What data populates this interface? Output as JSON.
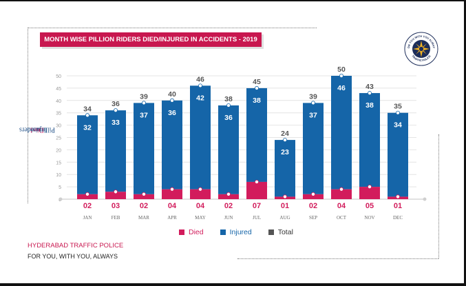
{
  "title": "MONTH WISE PILLION RIDERS DIED/INJURED IN ACCIDENTS - 2019",
  "ylabel_prefix": "Pillion riders",
  "ylabel_died": "Died",
  "ylabel_sep": " / ",
  "ylabel_injured": "Injured",
  "footer_org": "HYDERABAD TRAFFIC POLICE",
  "footer_tagline": "FOR YOU, WITH YOU, ALWAYS",
  "logo": {
    "top_text": "FOR YOU WITH YOU ALWAYS",
    "bottom_text": "TRAFFIC POLICE"
  },
  "colors": {
    "died": "#d21c5c",
    "injured": "#1565a8",
    "total": "#555555",
    "title_bg": "#c8174f"
  },
  "chart_data": {
    "type": "bar",
    "stacked": true,
    "categories": [
      "JAN",
      "FEB",
      "MAR",
      "APR",
      "MAY",
      "JUN",
      "JUL",
      "AUG",
      "SEP",
      "OCT",
      "NOV",
      "DEC"
    ],
    "series": [
      {
        "name": "Died",
        "values": [
          2,
          3,
          2,
          4,
          4,
          2,
          7,
          1,
          2,
          4,
          5,
          1
        ],
        "labels": [
          "02",
          "03",
          "02",
          "04",
          "04",
          "02",
          "07",
          "01",
          "02",
          "04",
          "05",
          "01"
        ]
      },
      {
        "name": "Injured",
        "values": [
          32,
          33,
          37,
          36,
          42,
          36,
          38,
          23,
          37,
          46,
          38,
          34
        ]
      },
      {
        "name": "Total",
        "values": [
          34,
          36,
          39,
          40,
          46,
          38,
          45,
          24,
          39,
          50,
          43,
          35
        ]
      }
    ],
    "ylabel": "Pillion riders Died / Injured",
    "ylim": [
      0,
      50
    ],
    "yticks": [
      0,
      5,
      10,
      15,
      20,
      25,
      30,
      35,
      40,
      45,
      50
    ],
    "grid": true,
    "legend": "bottom"
  }
}
